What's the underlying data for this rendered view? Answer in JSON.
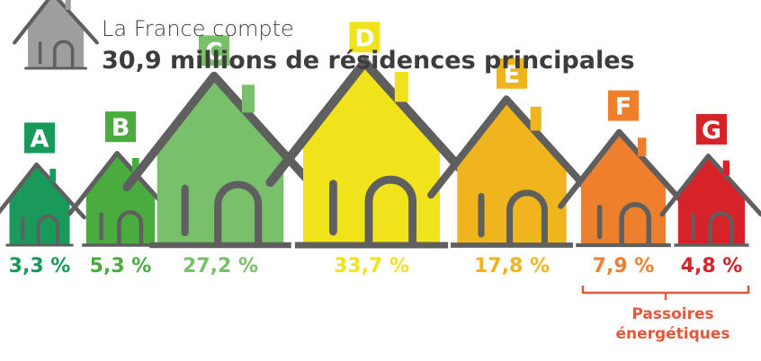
{
  "header": {
    "intro": "La France compte",
    "headline": "30,9 millions de résidences principales",
    "text_color": "#3d3d3d",
    "house_icon_color": "#9e9e9e",
    "house_icon": "house-icon"
  },
  "chart_data": {
    "type": "bar",
    "title": "",
    "xlabel": "",
    "ylabel": "",
    "categories": [
      "A",
      "B",
      "C",
      "D",
      "E",
      "F",
      "G"
    ],
    "values": [
      3.3,
      5.3,
      27.2,
      33.7,
      17.8,
      7.9,
      4.8
    ],
    "value_labels": [
      "3,3 %",
      "5,3 %",
      "27,2 %",
      "33,7 %",
      "17,8 %",
      "7,9 %",
      "4,8 %"
    ],
    "colors": [
      "#1a9a5a",
      "#4aab3e",
      "#79c06b",
      "#f0e21b",
      "#f0b41c",
      "#ee7f2d",
      "#d52329"
    ],
    "mark": "house-icon",
    "legend": "none",
    "grid": false,
    "annotation": {
      "line1": "Passoires",
      "line2": "énergétiques",
      "applies_to": [
        "F",
        "G"
      ],
      "color": "#e4573a"
    }
  }
}
